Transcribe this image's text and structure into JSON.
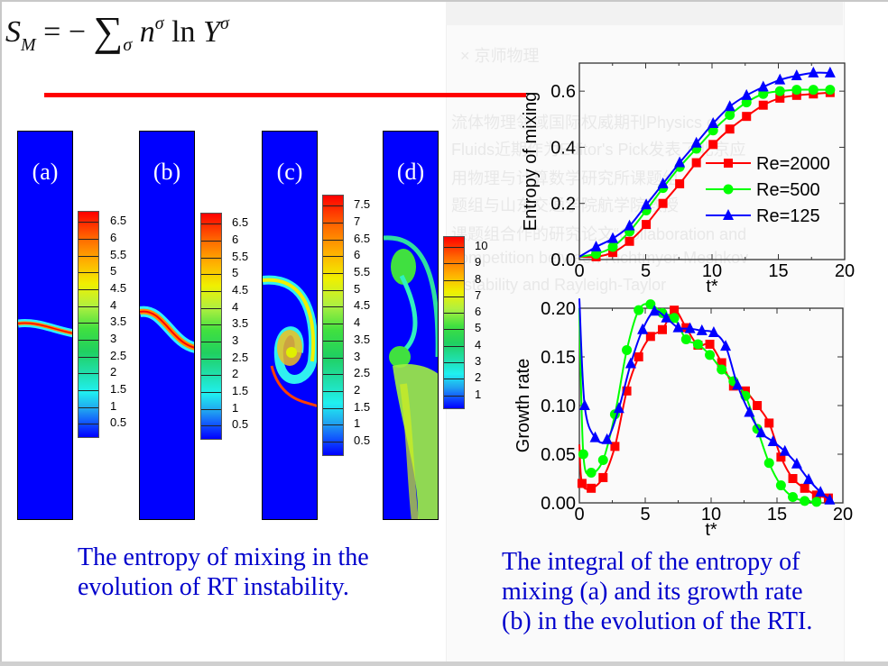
{
  "formula": {
    "lhs": "S",
    "lhs_sub": "M",
    "equals": "= −",
    "sum": "∑",
    "sum_sub": "σ",
    "n": "n",
    "n_sup": "σ",
    "ln": "ln",
    "Y": "Y",
    "Y_sup": "σ"
  },
  "accent_color": "#ff0000",
  "watermark_lines": [
    "×  京师物理",
    "流体物理领域国际权威期刊Physics of",
    "Fluids近期作为Editor's Pick发表了北京应",
    "用物理与计算数学研究所课题组",
    "题组与山东交通学院航学院教授",
    "课题组合作的研究论文“Collaboration and",
    "competition between Richtmyer-Meshkov",
    "instability and Rayleigh-Taylor"
  ],
  "panels": [
    {
      "label": "(a)",
      "colorbar": [
        "6.5",
        "6",
        "5.5",
        "5",
        "4.5",
        "4",
        "3.5",
        "3",
        "2.5",
        "2",
        "1.5",
        "1",
        "0.5"
      ]
    },
    {
      "label": "(b)",
      "colorbar": [
        "6.5",
        "6",
        "5.5",
        "5",
        "4.5",
        "4",
        "3.5",
        "3",
        "2.5",
        "2",
        "1.5",
        "1",
        "0.5"
      ]
    },
    {
      "label": "(c)",
      "colorbar": [
        "7.5",
        "7",
        "6.5",
        "6",
        "5.5",
        "5",
        "4.5",
        "4",
        "3.5",
        "3",
        "2.5",
        "2",
        "1.5",
        "1",
        "0.5"
      ]
    },
    {
      "label": "(d)",
      "colorbar": [
        "10",
        "9",
        "8",
        "7",
        "6",
        "5",
        "4",
        "3",
        "2",
        "1"
      ]
    }
  ],
  "captions": {
    "left": [
      "The entropy of mixing in the",
      "evolution of RT instability."
    ],
    "right": [
      "The integral of the entropy of",
      "mixing (a) and its growth rate",
      "(b) in the evolution of the RTI."
    ]
  },
  "chart_data": [
    {
      "type": "line",
      "title": "",
      "xlabel": "t*",
      "ylabel": "Entropy of mixing",
      "xlim": [
        0,
        20
      ],
      "ylim": [
        0,
        0.7
      ],
      "xticks": [
        "0",
        "5",
        "10",
        "15",
        "20"
      ],
      "yticks": [
        "0.0",
        "0.2",
        "0.4",
        "0.6"
      ],
      "legend_position": "center-right",
      "grid": false,
      "x": [
        0,
        1.26,
        2.52,
        3.78,
        5.04,
        6.3,
        7.56,
        8.82,
        10.08,
        11.34,
        12.6,
        13.86,
        15.12,
        16.38,
        17.64,
        18.9
      ],
      "series": [
        {
          "name": "Re=2000",
          "color": "#ff0000",
          "marker": "square",
          "values": [
            0.01,
            0.01,
            0.025,
            0.065,
            0.125,
            0.2,
            0.27,
            0.345,
            0.41,
            0.465,
            0.51,
            0.55,
            0.575,
            0.585,
            0.59,
            0.595
          ]
        },
        {
          "name": "Re=500",
          "color": "#00ff00",
          "marker": "circle",
          "values": [
            0.01,
            0.02,
            0.045,
            0.1,
            0.175,
            0.255,
            0.33,
            0.395,
            0.46,
            0.515,
            0.56,
            0.59,
            0.6,
            0.605,
            0.605,
            0.605
          ]
        },
        {
          "name": "Re=125",
          "color": "#0000ff",
          "marker": "triangle",
          "values": [
            0.01,
            0.045,
            0.075,
            0.12,
            0.195,
            0.27,
            0.345,
            0.415,
            0.485,
            0.545,
            0.585,
            0.615,
            0.64,
            0.655,
            0.665,
            0.665
          ]
        }
      ]
    },
    {
      "type": "line",
      "title": "",
      "xlabel": "t*",
      "ylabel": "Growth rate",
      "xlim": [
        0,
        20
      ],
      "ylim": [
        0,
        0.2
      ],
      "xticks": [
        "0",
        "5",
        "10",
        "15",
        "20"
      ],
      "yticks": [
        "0.00",
        "0.05",
        "0.10",
        "0.15",
        "0.20"
      ],
      "grid": false,
      "series": [
        {
          "name": "Re=2000",
          "color": "#ff0000",
          "marker": "square",
          "x": [
            0,
            0.2,
            0.9,
            1.8,
            2.7,
            3.6,
            4.5,
            5.4,
            6.3,
            7.2,
            8.1,
            9.0,
            9.9,
            10.8,
            11.7,
            12.6,
            13.5,
            14.4,
            15.3,
            16.2,
            17.1,
            18.0,
            18.9
          ],
          "values": [
            0.06,
            0.02,
            0.015,
            0.026,
            0.058,
            0.115,
            0.15,
            0.171,
            0.178,
            0.198,
            0.18,
            0.162,
            0.163,
            0.144,
            0.12,
            0.115,
            0.1,
            0.082,
            0.047,
            0.025,
            0.015,
            0.008,
            0.005
          ]
        },
        {
          "name": "Re=500",
          "color": "#00ff00",
          "marker": "circle",
          "x": [
            0,
            0.3,
            0.9,
            1.8,
            2.7,
            3.6,
            4.5,
            5.4,
            6.3,
            7.2,
            8.1,
            9.0,
            9.9,
            10.8,
            11.7,
            12.6,
            13.5,
            14.4,
            15.3,
            16.2,
            17.1,
            18.0
          ],
          "values": [
            0.2,
            0.05,
            0.031,
            0.044,
            0.091,
            0.157,
            0.198,
            0.204,
            0.195,
            0.19,
            0.168,
            0.163,
            0.152,
            0.137,
            0.125,
            0.11,
            0.076,
            0.041,
            0.018,
            0.006,
            0.002,
            0.001
          ]
        },
        {
          "name": "Re=125",
          "color": "#0000ff",
          "marker": "triangle",
          "x": [
            0,
            0.4,
            1.2,
            2.1,
            3.0,
            3.9,
            4.8,
            5.7,
            6.6,
            7.5,
            8.4,
            9.3,
            10.2,
            11.1,
            12.0,
            12.9,
            13.8,
            14.7,
            15.6,
            16.5,
            17.4,
            18.3,
            19.0
          ],
          "values": [
            0.21,
            0.1,
            0.067,
            0.065,
            0.097,
            0.143,
            0.178,
            0.197,
            0.19,
            0.18,
            0.179,
            0.177,
            0.175,
            0.161,
            0.121,
            0.093,
            0.072,
            0.063,
            0.053,
            0.04,
            0.024,
            0.011,
            0.003
          ]
        }
      ]
    }
  ]
}
